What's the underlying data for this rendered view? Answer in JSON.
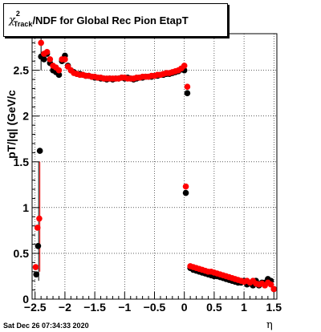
{
  "title": {
    "chi_symbol": "χ",
    "superscript": "2",
    "subscript": "Track",
    "rest": "/NDF for Global Rec Pion EtapT"
  },
  "footer_date": "Sat Dec 26 07:34:33 2020",
  "chart_data": {
    "type": "scatter",
    "title": "χ2_Track/NDF for Global Rec Pion EtapT",
    "xlabel": "η",
    "ylabel": "pT/|q| (GeV/c",
    "xlim": [
      -2.55,
      1.55
    ],
    "ylim": [
      0,
      2.9
    ],
    "grid": true,
    "x_ticks": [
      -2.5,
      -2,
      -1.5,
      -1,
      -0.5,
      0,
      0.5,
      1,
      1.5
    ],
    "x_tick_labels": [
      "−2.5",
      "−2",
      "−1.5",
      "−1",
      "−0.5",
      "0",
      "0.5",
      "1",
      "1.5"
    ],
    "y_ticks": [
      0,
      0.5,
      1,
      1.5,
      2,
      2.5
    ],
    "y_tick_labels": [
      "0",
      "0.5",
      "1",
      "1.5",
      "2",
      "2.5"
    ],
    "colors": {
      "series1": "#000000",
      "series2": "#ff0000"
    },
    "series": [
      {
        "name": "",
        "color": "#000000",
        "points": [
          [
            -2.48,
            0.27
          ],
          [
            -2.45,
            0.58
          ],
          [
            -2.42,
            1.62
          ],
          [
            -2.4,
            2.65
          ],
          [
            -2.35,
            2.62
          ],
          [
            -2.3,
            2.68
          ],
          [
            -2.25,
            2.58
          ],
          [
            -2.2,
            2.5
          ],
          [
            -2.15,
            2.48
          ],
          [
            -2.1,
            2.45
          ],
          [
            -2.05,
            2.6
          ],
          [
            -2.0,
            2.66
          ],
          [
            -1.95,
            2.55
          ],
          [
            -1.9,
            2.5
          ],
          [
            -1.85,
            2.48
          ],
          [
            -1.8,
            2.46
          ],
          [
            -1.75,
            2.46
          ],
          [
            -1.7,
            2.45
          ],
          [
            -1.65,
            2.44
          ],
          [
            -1.6,
            2.44
          ],
          [
            -1.55,
            2.43
          ],
          [
            -1.5,
            2.42
          ],
          [
            -1.45,
            2.42
          ],
          [
            -1.4,
            2.41
          ],
          [
            -1.35,
            2.41
          ],
          [
            -1.3,
            2.4
          ],
          [
            -1.25,
            2.41
          ],
          [
            -1.2,
            2.4
          ],
          [
            -1.15,
            2.41
          ],
          [
            -1.1,
            2.41
          ],
          [
            -1.05,
            2.42
          ],
          [
            -1.0,
            2.41
          ],
          [
            -0.95,
            2.42
          ],
          [
            -0.9,
            2.41
          ],
          [
            -0.85,
            2.4
          ],
          [
            -0.8,
            2.41
          ],
          [
            -0.75,
            2.42
          ],
          [
            -0.7,
            2.42
          ],
          [
            -0.65,
            2.43
          ],
          [
            -0.6,
            2.43
          ],
          [
            -0.55,
            2.43
          ],
          [
            -0.5,
            2.44
          ],
          [
            -0.45,
            2.44
          ],
          [
            -0.4,
            2.45
          ],
          [
            -0.35,
            2.45
          ],
          [
            -0.3,
            2.46
          ],
          [
            -0.25,
            2.46
          ],
          [
            -0.2,
            2.47
          ],
          [
            -0.15,
            2.48
          ],
          [
            -0.1,
            2.49
          ],
          [
            -0.05,
            2.51
          ],
          [
            0.0,
            2.5
          ],
          [
            0.025,
            1.16
          ],
          [
            0.05,
            2.25
          ],
          [
            0.1,
            0.34
          ],
          [
            0.15,
            0.32
          ],
          [
            0.2,
            0.31
          ],
          [
            0.25,
            0.3
          ],
          [
            0.3,
            0.29
          ],
          [
            0.35,
            0.28
          ],
          [
            0.4,
            0.27
          ],
          [
            0.45,
            0.26
          ],
          [
            0.5,
            0.25
          ],
          [
            0.55,
            0.25
          ],
          [
            0.6,
            0.24
          ],
          [
            0.65,
            0.23
          ],
          [
            0.7,
            0.22
          ],
          [
            0.75,
            0.21
          ],
          [
            0.8,
            0.2
          ],
          [
            0.85,
            0.19
          ],
          [
            0.9,
            0.18
          ],
          [
            0.95,
            0.18
          ],
          [
            1.0,
            0.2
          ],
          [
            1.05,
            0.16
          ],
          [
            1.1,
            0.17
          ],
          [
            1.15,
            0.15
          ],
          [
            1.2,
            0.2
          ],
          [
            1.25,
            0.15
          ],
          [
            1.3,
            0.18
          ],
          [
            1.35,
            0.18
          ],
          [
            1.4,
            0.22
          ],
          [
            1.45,
            0.2
          ],
          [
            1.5,
            0.11
          ]
        ]
      },
      {
        "name": "",
        "color": "#ff0000",
        "points": [
          [
            -2.49,
            0.35
          ],
          [
            -2.46,
            0.78
          ],
          [
            -2.43,
            0.88
          ],
          [
            -2.4,
            2.8
          ],
          [
            -2.35,
            2.68
          ],
          [
            -2.3,
            2.7
          ],
          [
            -2.25,
            2.62
          ],
          [
            -2.2,
            2.55
          ],
          [
            -2.15,
            2.53
          ],
          [
            -2.1,
            2.5
          ],
          [
            -2.05,
            2.62
          ],
          [
            -2.0,
            2.62
          ],
          [
            -1.95,
            2.54
          ],
          [
            -1.9,
            2.5
          ],
          [
            -1.85,
            2.47
          ],
          [
            -1.8,
            2.46
          ],
          [
            -1.75,
            2.45
          ],
          [
            -1.7,
            2.45
          ],
          [
            -1.65,
            2.44
          ],
          [
            -1.6,
            2.44
          ],
          [
            -1.55,
            2.43
          ],
          [
            -1.5,
            2.43
          ],
          [
            -1.45,
            2.42
          ],
          [
            -1.4,
            2.42
          ],
          [
            -1.35,
            2.41
          ],
          [
            -1.3,
            2.41
          ],
          [
            -1.25,
            2.41
          ],
          [
            -1.2,
            2.41
          ],
          [
            -1.15,
            2.41
          ],
          [
            -1.1,
            2.41
          ],
          [
            -1.05,
            2.42
          ],
          [
            -1.0,
            2.42
          ],
          [
            -0.95,
            2.41
          ],
          [
            -0.9,
            2.41
          ],
          [
            -0.85,
            2.41
          ],
          [
            -0.8,
            2.42
          ],
          [
            -0.75,
            2.42
          ],
          [
            -0.7,
            2.43
          ],
          [
            -0.65,
            2.43
          ],
          [
            -0.6,
            2.43
          ],
          [
            -0.55,
            2.44
          ],
          [
            -0.5,
            2.44
          ],
          [
            -0.45,
            2.45
          ],
          [
            -0.4,
            2.45
          ],
          [
            -0.35,
            2.46
          ],
          [
            -0.3,
            2.47
          ],
          [
            -0.25,
            2.47
          ],
          [
            -0.2,
            2.48
          ],
          [
            -0.15,
            2.49
          ],
          [
            -0.1,
            2.5
          ],
          [
            -0.05,
            2.52
          ],
          [
            0.0,
            2.55
          ],
          [
            0.025,
            1.23
          ],
          [
            0.05,
            2.32
          ],
          [
            0.1,
            0.36
          ],
          [
            0.15,
            0.35
          ],
          [
            0.2,
            0.34
          ],
          [
            0.25,
            0.33
          ],
          [
            0.3,
            0.32
          ],
          [
            0.35,
            0.31
          ],
          [
            0.4,
            0.3
          ],
          [
            0.45,
            0.3
          ],
          [
            0.5,
            0.29
          ],
          [
            0.55,
            0.28
          ],
          [
            0.6,
            0.27
          ],
          [
            0.65,
            0.26
          ],
          [
            0.7,
            0.25
          ],
          [
            0.75,
            0.24
          ],
          [
            0.8,
            0.23
          ],
          [
            0.85,
            0.22
          ],
          [
            0.9,
            0.21
          ],
          [
            0.95,
            0.2
          ],
          [
            1.0,
            0.19
          ],
          [
            1.05,
            0.2
          ],
          [
            1.1,
            0.18
          ],
          [
            1.15,
            0.2
          ],
          [
            1.2,
            0.17
          ],
          [
            1.25,
            0.16
          ],
          [
            1.3,
            0.17
          ],
          [
            1.35,
            0.15
          ],
          [
            1.4,
            0.18
          ],
          [
            1.45,
            0.16
          ],
          [
            1.5,
            0.11
          ]
        ]
      }
    ]
  }
}
